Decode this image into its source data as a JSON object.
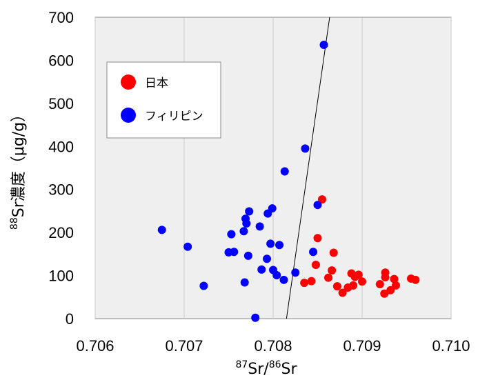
{
  "chart_data": {
    "type": "scatter",
    "title": "",
    "xlabel_parts": {
      "sup1": "87",
      "base1": "Sr/",
      "sup2": "86",
      "base2": "Sr"
    },
    "ylabel_parts": {
      "sup": "88",
      "text": "Sr濃度（μg/g）"
    },
    "xlim": [
      0.706,
      0.71
    ],
    "ylim": [
      0,
      700
    ],
    "xticks": [
      "0.706",
      "0.707",
      "0.708",
      "0.709",
      "0.710"
    ],
    "yticks": [
      "0",
      "100",
      "200",
      "300",
      "400",
      "500",
      "600",
      "700"
    ],
    "plot_background": "#efefef",
    "grid": "vertical",
    "legend_position": "top-left",
    "series": [
      {
        "name": "日本",
        "color": "#ff0000",
        "points": [
          [
            0.70855,
            277
          ],
          [
            0.7085,
            187
          ],
          [
            0.70848,
            125
          ],
          [
            0.70835,
            83
          ],
          [
            0.70843,
            87
          ],
          [
            0.70862,
            95
          ],
          [
            0.70868,
            153
          ],
          [
            0.70866,
            112
          ],
          [
            0.70872,
            75
          ],
          [
            0.70878,
            60
          ],
          [
            0.70884,
            72
          ],
          [
            0.70888,
            105
          ],
          [
            0.70892,
            97
          ],
          [
            0.7089,
            77
          ],
          [
            0.70896,
            102
          ],
          [
            0.709,
            86
          ],
          [
            0.7092,
            80
          ],
          [
            0.70926,
            107
          ],
          [
            0.70926,
            96
          ],
          [
            0.70925,
            58
          ],
          [
            0.70932,
            66
          ],
          [
            0.70936,
            92
          ],
          [
            0.70938,
            77
          ],
          [
            0.70955,
            93
          ],
          [
            0.7096,
            90
          ]
        ]
      },
      {
        "name": "フィリピン",
        "color": "#0000ff",
        "points": [
          [
            0.70857,
            636
          ],
          [
            0.70836,
            395
          ],
          [
            0.70813,
            342
          ],
          [
            0.7085,
            264
          ],
          [
            0.70799,
            256
          ],
          [
            0.70785,
            214
          ],
          [
            0.70794,
            244
          ],
          [
            0.70773,
            249
          ],
          [
            0.7077,
            221
          ],
          [
            0.70769,
            232
          ],
          [
            0.70767,
            203
          ],
          [
            0.70753,
            196
          ],
          [
            0.70675,
            206
          ],
          [
            0.70704,
            167
          ],
          [
            0.7075,
            154
          ],
          [
            0.70756,
            155
          ],
          [
            0.70772,
            146
          ],
          [
            0.70797,
            174
          ],
          [
            0.70807,
            171
          ],
          [
            0.70793,
            139
          ],
          [
            0.70787,
            114
          ],
          [
            0.708,
            113
          ],
          [
            0.70804,
            101
          ],
          [
            0.70812,
            90
          ],
          [
            0.70825,
            107
          ],
          [
            0.70845,
            155
          ],
          [
            0.70768,
            84
          ],
          [
            0.70722,
            76
          ],
          [
            0.7078,
            2
          ]
        ]
      }
    ],
    "boundary_line": {
      "from": [
        0.70815,
        0
      ],
      "to": [
        0.708635,
        700
      ],
      "color": "#000000"
    }
  }
}
